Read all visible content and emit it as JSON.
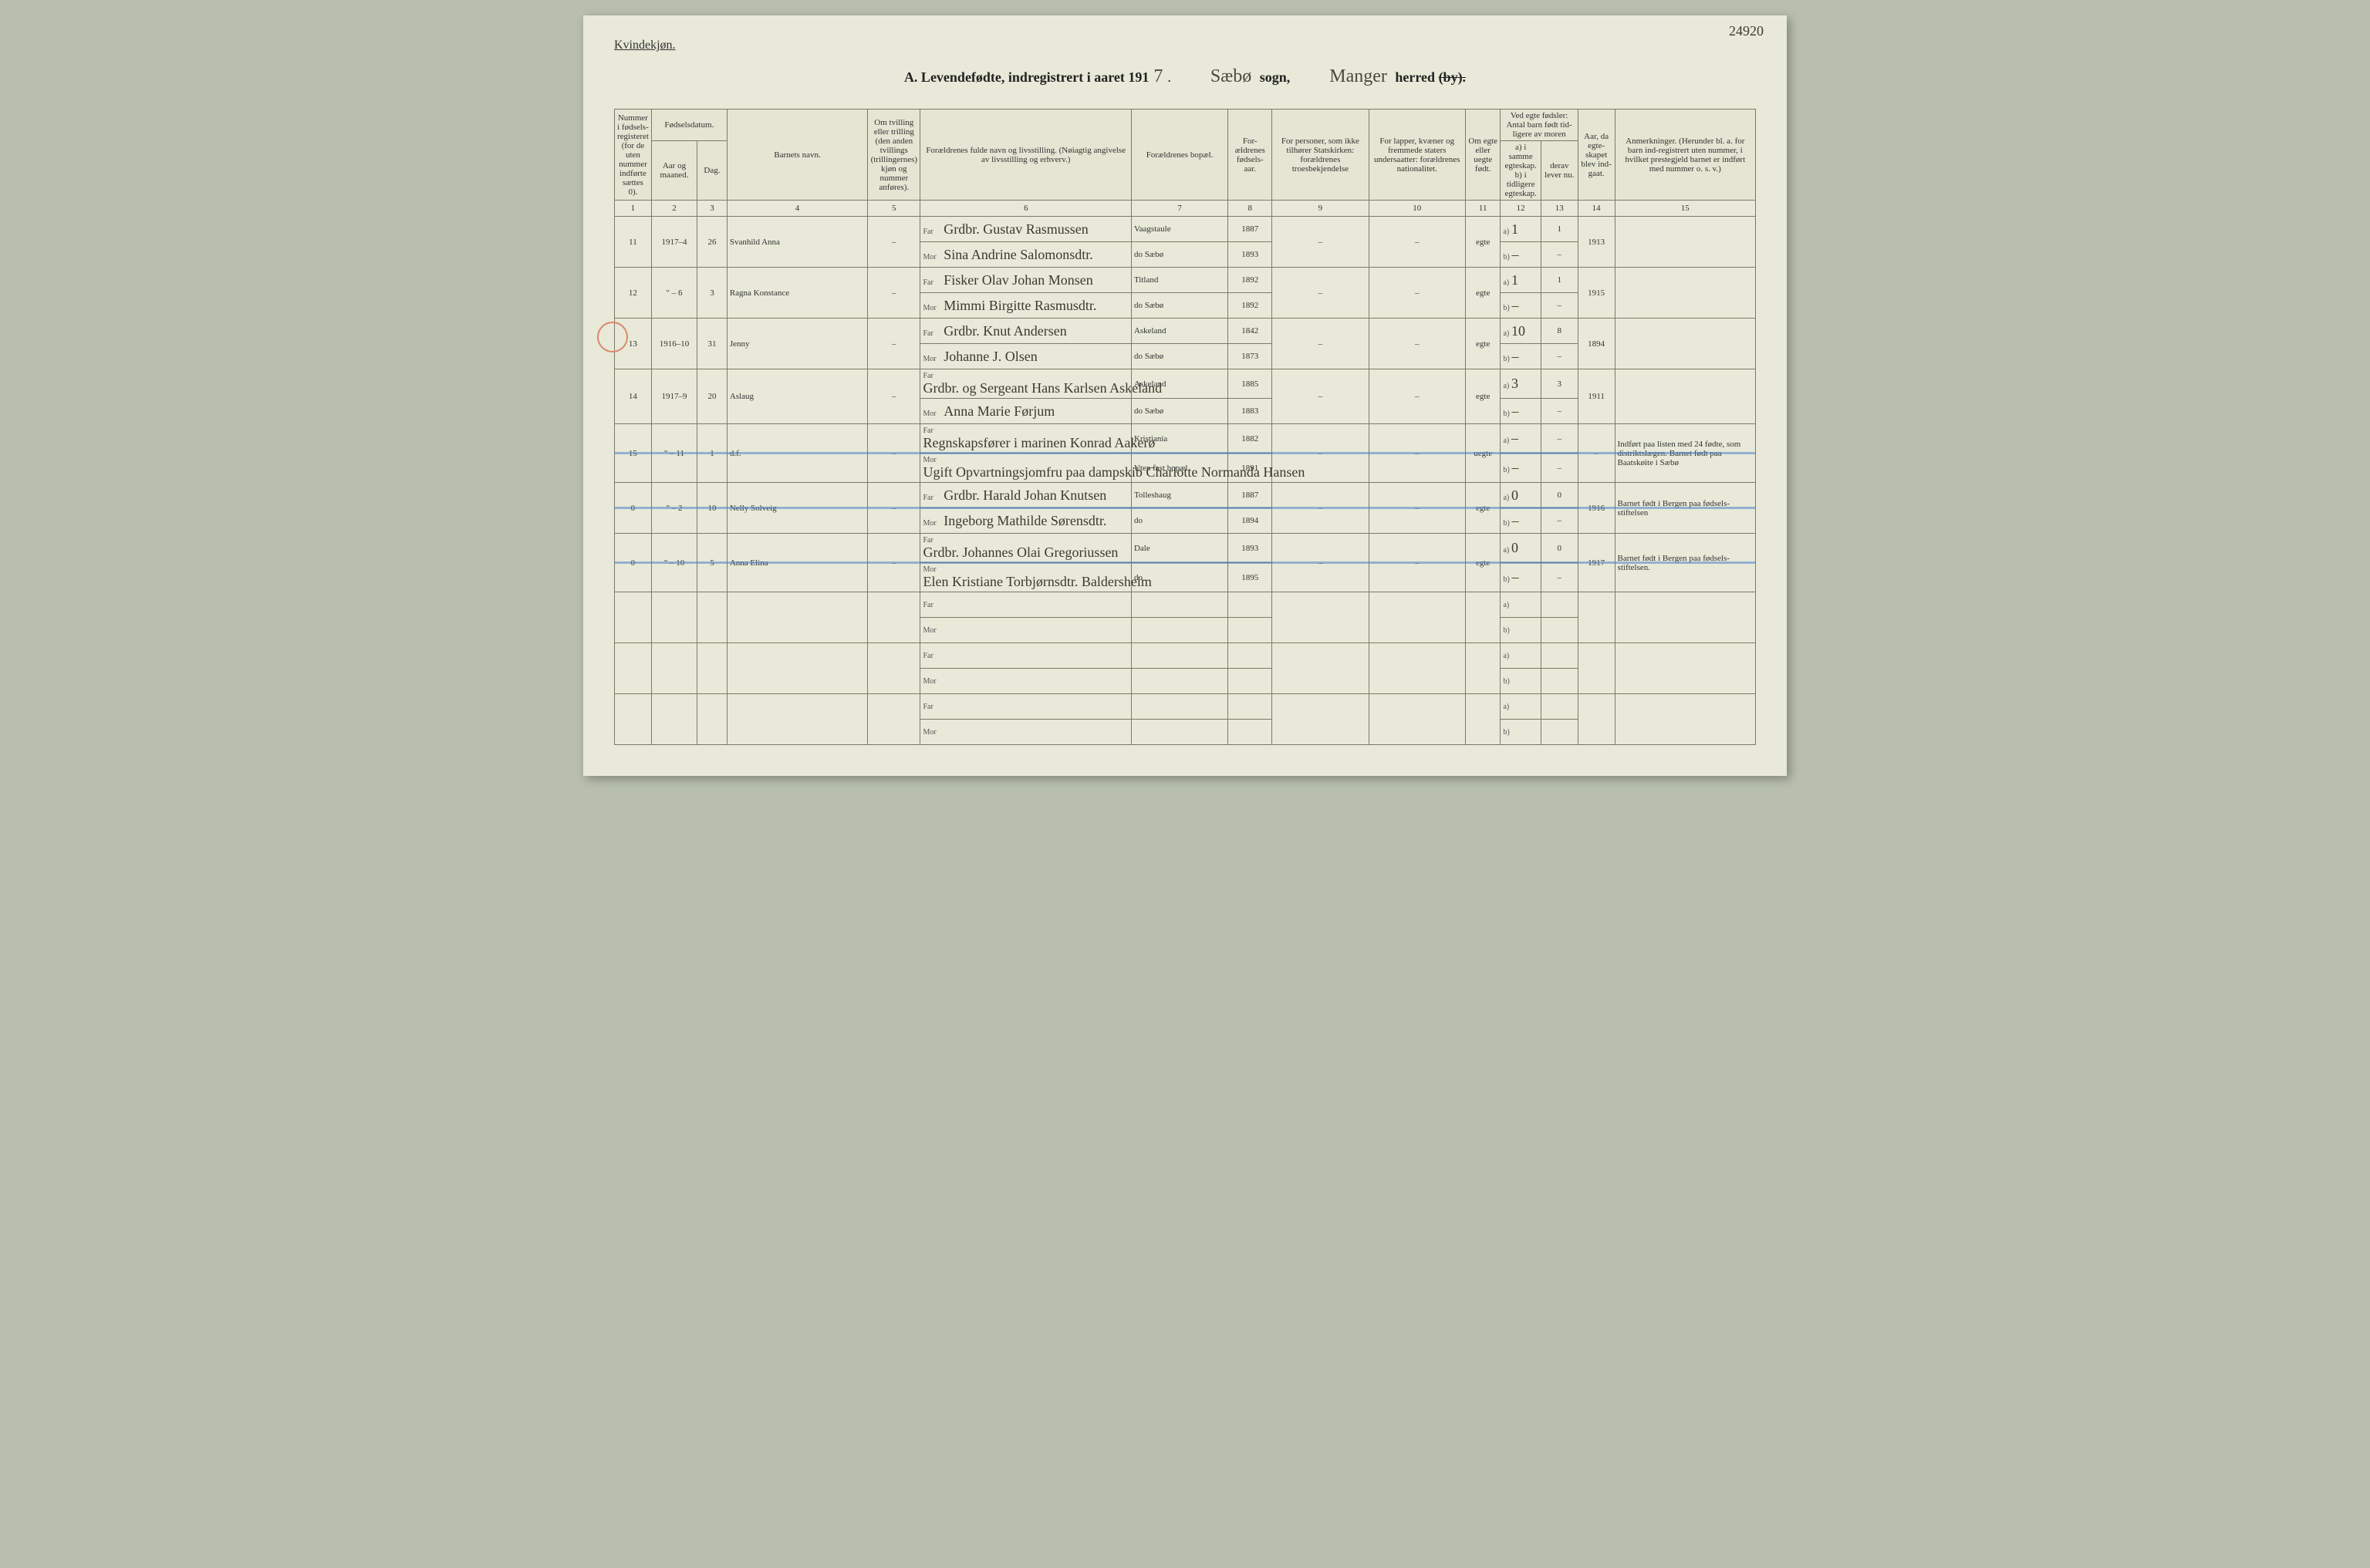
{
  "page_number_corner": "24920",
  "gender_label": "Kvindekjøn.",
  "title": {
    "prefix": "A.  Levendefødte, indregistrert i aaret 191",
    "year_digit": "7",
    "sogn_hw": "Sæbø",
    "sogn_label": "sogn,",
    "herred_hw": "Manger",
    "herred_label": "herred",
    "by_struck": "(by)."
  },
  "headers": {
    "c1": "Nummer i fødsels-registeret (for de uten nummer indførte sættes 0).",
    "c2_group": "Fødselsdatum.",
    "c2a": "Aar og maaned.",
    "c2b": "Dag.",
    "c4": "Barnets navn.",
    "c5": "Om tvilling eller trilling (den anden tvillings (trillingernes) kjøn og nummer anføres).",
    "c6": "Forældrenes fulde navn og livsstilling. (Nøiagtig angivelse av livsstilling og erhverv.)",
    "c7": "Forældrenes bopæl.",
    "c8": "For-ældrenes fødsels-aar.",
    "c9": "For personer, som ikke tilhører Statskirken: forældrenes troesbekjendelse",
    "c10": "For lapper, kvæner og fremmede staters undersaatter: forældrenes nationalitet.",
    "c11": "Om egte eller uegte født.",
    "c12_group": "Ved egte fødsler: Antal barn født tid-ligere av moren",
    "c12a": "a) i samme egteskap. b) i tidligere egteskap.",
    "c12b": "derav lever nu.",
    "c14": "Aar, da egte-skapet blev ind-gaat.",
    "c15": "Anmerkninger. (Herunder bl. a. for barn ind-registrert uten nummer, i hvilket prestegjeld barnet er indført med nummer o. s. v.)"
  },
  "colnums": [
    "1",
    "2",
    "3",
    "4",
    "5",
    "6",
    "7",
    "8",
    "9",
    "10",
    "11",
    "12",
    "13",
    "14",
    "15"
  ],
  "far_label": "Far",
  "mor_label": "Mor",
  "a_label": "a)",
  "b_label": "b)",
  "dash": "–",
  "rows": [
    {
      "num": "11",
      "ym": "1917–4",
      "day": "26",
      "name": "Svanhild Anna",
      "tvil": "–",
      "far": "Grdbr. Gustav Rasmussen",
      "mor": "Sina Andrine Salomonsdtr.",
      "bopel_f": "Vaagstaule",
      "bopel_m": "do   Sæbø",
      "aar_f": "1887",
      "aar_m": "1893",
      "c9": "–",
      "c10": "–",
      "egte": "egte",
      "a": "1",
      "b": "–",
      "lever_a": "1",
      "lever_b": "–",
      "indg": "1913",
      "anm": ""
    },
    {
      "num": "12",
      "ym": "\" – 6",
      "day": "3",
      "name": "Ragna Konstance",
      "tvil": "–",
      "far": "Fisker Olav Johan Monsen",
      "mor": "Mimmi Birgitte Rasmusdtr.",
      "bopel_f": "Titland",
      "bopel_m": "do   Sæbø",
      "aar_f": "1892",
      "aar_m": "1892",
      "c9": "–",
      "c10": "–",
      "egte": "egte",
      "a": "1",
      "b": "–",
      "lever_a": "1",
      "lever_b": "–",
      "indg": "1915",
      "anm": ""
    },
    {
      "num": "13",
      "ym": "1916–10",
      "day": "31",
      "name": "Jenny",
      "tvil": "–",
      "far": "Grdbr. Knut Andersen",
      "mor": "Johanne J. Olsen",
      "bopel_f": "Askeland",
      "bopel_m": "do   Sæbø",
      "aar_f": "1842",
      "aar_m": "1873",
      "c9": "–",
      "c10": "–",
      "egte": "egte",
      "a": "10",
      "b": "–",
      "lever_a": "8",
      "lever_b": "–",
      "indg": "1894",
      "anm": "",
      "circled": true
    },
    {
      "num": "14",
      "ym": "1917–9",
      "day": "20",
      "name": "Aslaug",
      "tvil": "–",
      "far": "Grdbr. og Sergeant Hans Karlsen Askeland",
      "mor": "Anna Marie Førjum",
      "bopel_f": "Askeland",
      "bopel_m": "do   Sæbø",
      "aar_f": "1885",
      "aar_m": "1883",
      "c9": "–",
      "c10": "–",
      "egte": "egte",
      "a": "3",
      "b": "–",
      "lever_a": "3",
      "lever_b": "–",
      "indg": "1911",
      "anm": ""
    },
    {
      "num": "15",
      "ym": "\" – 11",
      "day": "1",
      "name": "d.f.",
      "tvil": "–",
      "far": "Regnskapsfører i marinen Konrad Aakerø",
      "mor": "Ugift Opvartningsjomfru paa dampskib Charlotte Normanda Hansen",
      "bopel_f": "Kristiania",
      "bopel_m": "Uten fast bopæl",
      "aar_f": "1882",
      "aar_m": "1891",
      "c9": "–",
      "c10": "–",
      "egte": "uegte",
      "a": "–",
      "b": "–",
      "lever_a": "–",
      "lever_b": "–",
      "indg": "–",
      "anm": "Indført paa listen med 24 fødte, som distriktslægen. Barnet født paa Baatskøite i Sæbø",
      "struck": true
    },
    {
      "num": "0",
      "ym": "\" – 2",
      "day": "10",
      "name": "Nelly Solveig",
      "tvil": "–",
      "far": "Grdbr. Harald Johan Knutsen",
      "mor": "Ingeborg Mathilde Sørensdtr.",
      "bopel_f": "Tolleshaug",
      "bopel_m": "do",
      "aar_f": "1887",
      "aar_m": "1894",
      "c9": "–",
      "c10": "–",
      "egte": "egte",
      "a": "0",
      "b": "–",
      "lever_a": "0",
      "lever_b": "–",
      "indg": "1916",
      "anm": "Barnet født i Bergen paa fødsels-stiftelsen",
      "struck": true
    },
    {
      "num": "0",
      "ym": "\" – 10",
      "day": "5",
      "name": "Anna Elina",
      "tvil": "–",
      "far": "Grdbr. Johannes Olai Gregoriussen",
      "mor": "Elen Kristiane Torbjørnsdtr. Baldersheim",
      "bopel_f": "Dale",
      "bopel_m": "do",
      "aar_f": "1893",
      "aar_m": "1895",
      "c9": "–",
      "c10": "–",
      "egte": "egte",
      "a": "0",
      "b": "–",
      "lever_a": "0",
      "lever_b": "–",
      "indg": "1917",
      "anm": "Barnet født i Bergen paa fødsels-stiftelsen.",
      "struck": true
    },
    {
      "empty": true
    },
    {
      "empty": true
    },
    {
      "empty": true
    }
  ],
  "styling": {
    "page_bg": "#e8e9d8",
    "outer_bg": "#b8bfae",
    "border_color": "#7a7a68",
    "hand_color": "#3a3a2e",
    "circle_color": "#d9886a",
    "strike_color": "rgba(80,130,200,0.55)",
    "printed_fontsize": 11,
    "hand_fontsize": 18
  }
}
